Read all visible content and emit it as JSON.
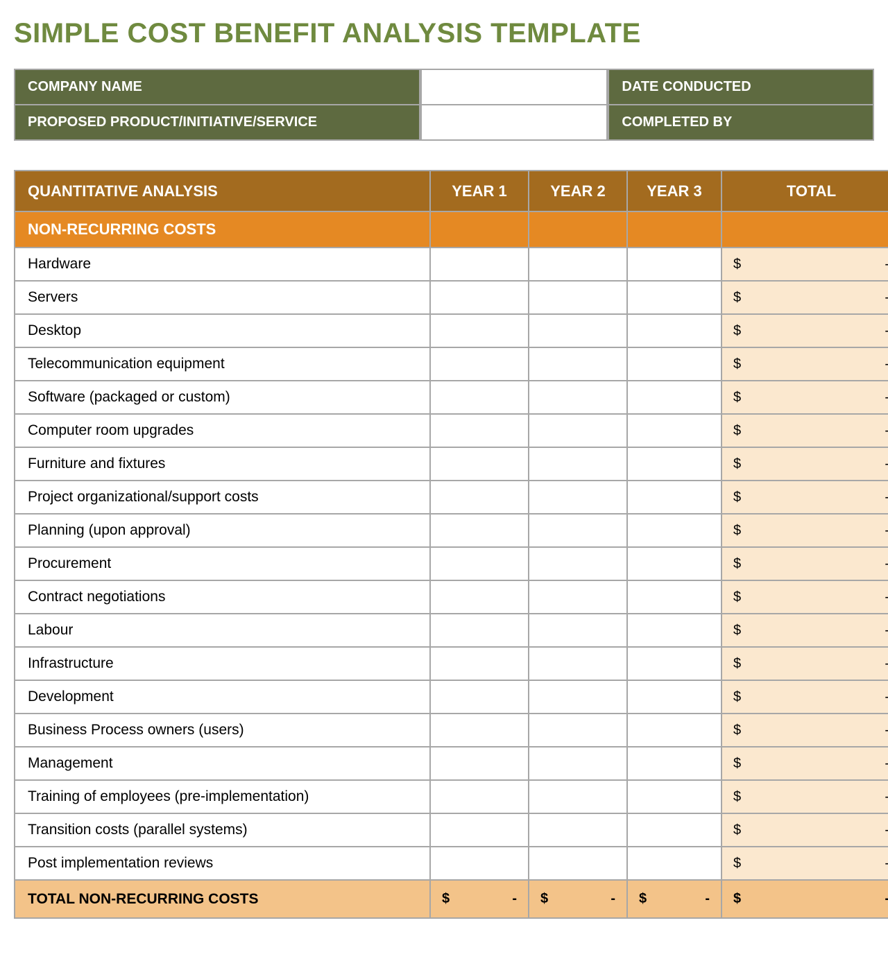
{
  "title": "SIMPLE COST BENEFIT ANALYSIS TEMPLATE",
  "colors": {
    "title": "#6f8a3f",
    "meta_bg": "#5e6a40",
    "header_bg": "#a36b1f",
    "section_bg": "#e58923",
    "total_cell_bg": "#fbe8cf",
    "total_row_bg": "#f3c389",
    "border": "#a7a7a7"
  },
  "meta": {
    "company_label": "COMPANY NAME",
    "date_label": "DATE CONDUCTED",
    "product_label": "PROPOSED PRODUCT/INITIATIVE/SERVICE",
    "completed_label": "COMPLETED BY"
  },
  "columns": {
    "main": "QUANTITATIVE ANALYSIS",
    "y1": "YEAR 1",
    "y2": "YEAR 2",
    "y3": "YEAR 3",
    "total": "TOTAL"
  },
  "section_label": "NON-RECURRING COSTS",
  "currency_symbol": "$",
  "empty_value": "-",
  "items": [
    "Hardware",
    "Servers",
    "Desktop",
    "Telecommunication equipment",
    "Software (packaged or custom)",
    "Computer room upgrades",
    "Furniture and fixtures",
    "Project organizational/support costs",
    "Planning (upon approval)",
    "Procurement",
    "Contract negotiations",
    "Labour",
    "Infrastructure",
    "Development",
    "Business Process owners (users)",
    "Management",
    "Training of employees (pre-implementation)",
    "Transition costs (parallel systems)",
    "Post implementation reviews"
  ],
  "footer_label": "TOTAL NON-RECURRING COSTS"
}
